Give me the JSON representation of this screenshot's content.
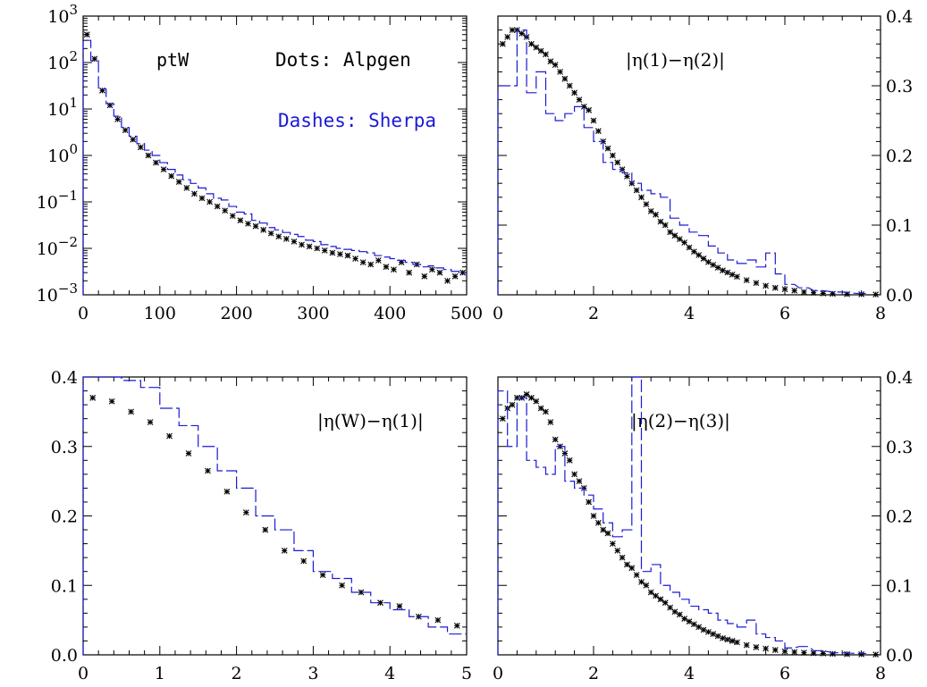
{
  "legend": {
    "dots_label": "Dots: Alpgen",
    "dashes_label": "Dashes: Sherpa",
    "dots_color": "#000000",
    "dashes_color": "#1a1ad6"
  },
  "chart_data": [
    {
      "id": "ptW",
      "type": "scatter",
      "label": "ptW",
      "yscale": "log",
      "xlim": [
        0,
        500
      ],
      "ylim": [
        0.001,
        1000
      ],
      "xticks": [
        0,
        100,
        200,
        300,
        400,
        500
      ],
      "yticks": [
        0.001,
        0.01,
        0.1,
        1,
        10,
        100,
        1000
      ],
      "ytick_labels": [
        {
          "base": "10",
          "exp": "−3"
        },
        {
          "base": "10",
          "exp": "−2"
        },
        {
          "base": "10",
          "exp": "−1"
        },
        {
          "base": "10",
          "exp": "0"
        },
        {
          "base": "10",
          "exp": "1"
        },
        {
          "base": "10",
          "exp": "2"
        },
        {
          "base": "10",
          "exp": "3"
        }
      ],
      "ytick_side": "left",
      "series": [
        {
          "name": "Alpgen",
          "style": "dots",
          "x": [
            5,
            15,
            25,
            35,
            45,
            55,
            65,
            75,
            85,
            95,
            105,
            115,
            125,
            135,
            145,
            155,
            165,
            175,
            185,
            195,
            205,
            215,
            225,
            235,
            245,
            255,
            265,
            275,
            285,
            295,
            305,
            315,
            325,
            335,
            345,
            355,
            365,
            375,
            385,
            395,
            405,
            415,
            425,
            435,
            445,
            455,
            465,
            475,
            485,
            495
          ],
          "y": [
            400,
            120,
            25,
            12,
            6,
            3.5,
            2.2,
            1.5,
            1.0,
            0.7,
            0.5,
            0.36,
            0.27,
            0.2,
            0.15,
            0.12,
            0.1,
            0.08,
            0.065,
            0.05,
            0.04,
            0.034,
            0.03,
            0.025,
            0.021,
            0.018,
            0.016,
            0.014,
            0.012,
            0.011,
            0.01,
            0.009,
            0.008,
            0.0075,
            0.007,
            0.006,
            0.005,
            0.0045,
            0.0055,
            0.004,
            0.0035,
            0.005,
            0.003,
            0.0045,
            0.0025,
            0.0035,
            0.003,
            0.002,
            0.0025,
            0.003
          ]
        },
        {
          "name": "Sherpa",
          "style": "dashes",
          "x": [
            5,
            15,
            25,
            35,
            45,
            55,
            65,
            75,
            85,
            95,
            105,
            115,
            125,
            135,
            145,
            155,
            165,
            175,
            185,
            195,
            205,
            215,
            225,
            235,
            245,
            255,
            265,
            275,
            285,
            295,
            305,
            315,
            325,
            335,
            345,
            355,
            365,
            375,
            385,
            395,
            405,
            415,
            425,
            435,
            445,
            455,
            465,
            475,
            485,
            495
          ],
          "y": [
            300,
            110,
            27,
            13,
            7,
            4.0,
            2.6,
            1.8,
            1.3,
            1.0,
            0.7,
            0.5,
            0.38,
            0.3,
            0.25,
            0.2,
            0.15,
            0.12,
            0.11,
            0.08,
            0.06,
            0.055,
            0.04,
            0.035,
            0.028,
            0.025,
            0.022,
            0.02,
            0.018,
            0.015,
            0.014,
            0.012,
            0.011,
            0.01,
            0.0095,
            0.009,
            0.0085,
            0.008,
            0.007,
            0.0065,
            0.006,
            0.0055,
            0.005,
            0.0045,
            0.004,
            0.0042,
            0.0038,
            0.0035,
            0.0032,
            0.003
          ]
        }
      ]
    },
    {
      "id": "eta12",
      "type": "scatter",
      "label": "|η(1)−η(2)|",
      "xlim": [
        0,
        8
      ],
      "ylim": [
        0,
        0.4
      ],
      "xticks": [
        0,
        2,
        4,
        6,
        8
      ],
      "yticks": [
        0.0,
        0.1,
        0.2,
        0.3,
        0.4
      ],
      "ytick_labels": [
        "0.0",
        "0.1",
        "0.2",
        "0.3",
        "0.4"
      ],
      "ytick_side": "right",
      "series": [
        {
          "name": "Alpgen",
          "style": "dots",
          "x": [
            0.1,
            0.2,
            0.3,
            0.4,
            0.5,
            0.6,
            0.7,
            0.8,
            0.9,
            1.0,
            1.1,
            1.2,
            1.3,
            1.4,
            1.5,
            1.6,
            1.7,
            1.8,
            1.9,
            2.0,
            2.1,
            2.2,
            2.3,
            2.4,
            2.5,
            2.6,
            2.7,
            2.8,
            2.9,
            3.0,
            3.1,
            3.2,
            3.3,
            3.4,
            3.5,
            3.6,
            3.7,
            3.8,
            3.9,
            4.0,
            4.1,
            4.2,
            4.3,
            4.4,
            4.5,
            4.6,
            4.7,
            4.8,
            4.9,
            5.0,
            5.2,
            5.4,
            5.6,
            5.8,
            6.0,
            6.2,
            6.4,
            6.6,
            6.8,
            7.0,
            7.3,
            7.6,
            7.9
          ],
          "y": [
            0.36,
            0.37,
            0.38,
            0.38,
            0.375,
            0.37,
            0.36,
            0.355,
            0.35,
            0.345,
            0.335,
            0.33,
            0.32,
            0.31,
            0.3,
            0.29,
            0.28,
            0.27,
            0.265,
            0.25,
            0.235,
            0.22,
            0.21,
            0.2,
            0.19,
            0.18,
            0.17,
            0.16,
            0.15,
            0.14,
            0.13,
            0.12,
            0.115,
            0.105,
            0.1,
            0.09,
            0.085,
            0.08,
            0.075,
            0.068,
            0.062,
            0.057,
            0.052,
            0.047,
            0.043,
            0.039,
            0.035,
            0.032,
            0.029,
            0.026,
            0.021,
            0.017,
            0.013,
            0.01,
            0.008,
            0.006,
            0.004,
            0.003,
            0.002,
            0.0015,
            0.001,
            0.0008,
            0.0005
          ]
        },
        {
          "name": "Sherpa",
          "style": "dashes",
          "x": [
            0.0,
            0.2,
            0.4,
            0.6,
            0.8,
            1.0,
            1.2,
            1.4,
            1.6,
            1.8,
            2.0,
            2.2,
            2.4,
            2.6,
            2.8,
            3.0,
            3.2,
            3.4,
            3.6,
            3.8,
            4.0,
            4.2,
            4.4,
            4.6,
            4.8,
            5.0,
            5.2,
            5.4,
            5.6,
            5.8,
            6.0,
            6.3,
            6.6,
            7.0,
            7.5
          ],
          "y": [
            0.3,
            0.3,
            0.38,
            0.29,
            0.32,
            0.26,
            0.25,
            0.26,
            0.27,
            0.24,
            0.22,
            0.19,
            0.18,
            0.175,
            0.16,
            0.15,
            0.145,
            0.14,
            0.11,
            0.1,
            0.09,
            0.085,
            0.07,
            0.06,
            0.05,
            0.045,
            0.05,
            0.04,
            0.06,
            0.03,
            0.015,
            0.01,
            0.006,
            0.004,
            0.002
          ]
        }
      ]
    },
    {
      "id": "etaW1",
      "type": "scatter",
      "label": "|η(W)−η(1)|",
      "xlim": [
        0,
        5
      ],
      "ylim": [
        0,
        0.4
      ],
      "xticks": [
        0,
        1,
        2,
        3,
        4,
        5
      ],
      "yticks": [
        0.0,
        0.1,
        0.2,
        0.3,
        0.4
      ],
      "ytick_labels": [
        "0.0",
        "0.1",
        "0.2",
        "0.3",
        "0.4"
      ],
      "ytick_side": "left",
      "series": [
        {
          "name": "Alpgen",
          "style": "dots",
          "x": [
            0.125,
            0.375,
            0.625,
            0.875,
            1.125,
            1.375,
            1.625,
            1.875,
            2.125,
            2.375,
            2.625,
            2.875,
            3.125,
            3.375,
            3.625,
            3.875,
            4.125,
            4.375,
            4.625,
            4.875
          ],
          "y": [
            0.37,
            0.365,
            0.35,
            0.335,
            0.315,
            0.29,
            0.265,
            0.235,
            0.205,
            0.18,
            0.15,
            0.135,
            0.115,
            0.1,
            0.09,
            0.075,
            0.07,
            0.055,
            0.05,
            0.042
          ]
        },
        {
          "name": "Sherpa",
          "style": "dashes",
          "x": [
            0.0,
            0.25,
            0.5,
            0.75,
            1.0,
            1.25,
            1.5,
            1.75,
            2.0,
            2.25,
            2.5,
            2.75,
            3.0,
            3.25,
            3.5,
            3.75,
            4.0,
            4.25,
            4.5,
            4.75
          ],
          "y": [
            0.4,
            0.4,
            0.395,
            0.385,
            0.355,
            0.33,
            0.3,
            0.265,
            0.24,
            0.2,
            0.18,
            0.15,
            0.12,
            0.11,
            0.09,
            0.075,
            0.065,
            0.055,
            0.04,
            0.03
          ]
        }
      ]
    },
    {
      "id": "eta23",
      "type": "scatter",
      "label": "|η(2)−η(3)|",
      "xlim": [
        0,
        8
      ],
      "ylim": [
        0,
        0.4
      ],
      "xticks": [
        0,
        2,
        4,
        6,
        8
      ],
      "yticks": [
        0.0,
        0.1,
        0.2,
        0.3,
        0.4
      ],
      "ytick_labels": [
        "0.0",
        "0.1",
        "0.2",
        "0.3",
        "0.4"
      ],
      "ytick_side": "right",
      "series": [
        {
          "name": "Alpgen",
          "style": "dots",
          "x": [
            0.1,
            0.2,
            0.3,
            0.4,
            0.5,
            0.6,
            0.7,
            0.8,
            0.9,
            1.0,
            1.1,
            1.2,
            1.3,
            1.4,
            1.5,
            1.6,
            1.7,
            1.8,
            1.9,
            2.0,
            2.1,
            2.2,
            2.3,
            2.4,
            2.5,
            2.6,
            2.7,
            2.8,
            2.9,
            3.0,
            3.1,
            3.2,
            3.3,
            3.4,
            3.5,
            3.6,
            3.7,
            3.8,
            3.9,
            4.0,
            4.1,
            4.2,
            4.3,
            4.4,
            4.5,
            4.6,
            4.7,
            4.8,
            4.9,
            5.0,
            5.2,
            5.4,
            5.6,
            5.8,
            6.0,
            6.2,
            6.4,
            6.6,
            6.8,
            7.0,
            7.3,
            7.6,
            7.9
          ],
          "y": [
            0.34,
            0.355,
            0.36,
            0.37,
            0.37,
            0.375,
            0.37,
            0.365,
            0.355,
            0.35,
            0.335,
            0.31,
            0.3,
            0.29,
            0.28,
            0.26,
            0.25,
            0.24,
            0.22,
            0.2,
            0.19,
            0.18,
            0.175,
            0.16,
            0.15,
            0.14,
            0.13,
            0.125,
            0.115,
            0.105,
            0.1,
            0.09,
            0.085,
            0.08,
            0.075,
            0.068,
            0.062,
            0.058,
            0.052,
            0.048,
            0.044,
            0.04,
            0.036,
            0.033,
            0.03,
            0.027,
            0.024,
            0.022,
            0.02,
            0.018,
            0.014,
            0.011,
            0.009,
            0.007,
            0.005,
            0.004,
            0.003,
            0.0025,
            0.002,
            0.0015,
            0.001,
            0.0008,
            0.0005
          ]
        },
        {
          "name": "Sherpa",
          "style": "dashes",
          "x": [
            0.0,
            0.2,
            0.4,
            0.6,
            0.8,
            1.0,
            1.2,
            1.4,
            1.6,
            1.8,
            2.0,
            2.2,
            2.4,
            2.6,
            2.8,
            3.0,
            3.2,
            3.4,
            3.6,
            3.8,
            4.0,
            4.2,
            4.4,
            4.6,
            4.8,
            5.0,
            5.2,
            5.4,
            5.6,
            5.8,
            6.0,
            6.3,
            6.6,
            7.0,
            7.5
          ],
          "y": [
            0.38,
            0.3,
            0.37,
            0.28,
            0.27,
            0.26,
            0.3,
            0.25,
            0.24,
            0.23,
            0.21,
            0.19,
            0.17,
            0.18,
            0.4,
            0.12,
            0.13,
            0.1,
            0.09,
            0.08,
            0.07,
            0.065,
            0.06,
            0.05,
            0.045,
            0.04,
            0.05,
            0.03,
            0.025,
            0.02,
            0.01,
            0.012,
            0.006,
            0.003,
            0.002
          ]
        }
      ]
    }
  ]
}
